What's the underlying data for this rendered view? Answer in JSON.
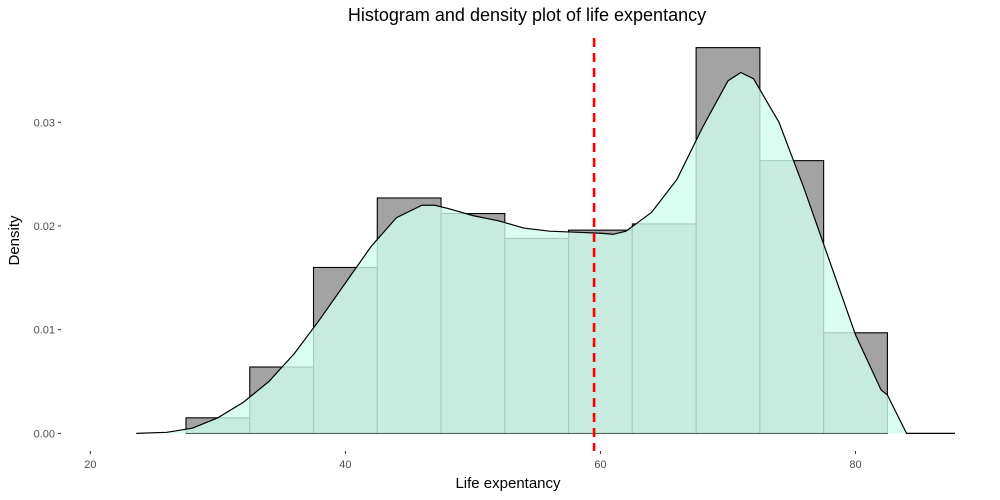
{
  "chart_data": {
    "type": "bar",
    "title": "Histogram and density plot of life expentancy",
    "xlabel": "Life expentancy",
    "ylabel": "Density",
    "xlim": [
      17.7,
      87.8
    ],
    "ylim": [
      -0.0017,
      0.0389
    ],
    "x_ticks": [
      20,
      40,
      60,
      80
    ],
    "x_tick_labels": [
      "20",
      "40",
      "60",
      "80"
    ],
    "y_ticks": [
      0.0,
      0.01,
      0.02,
      0.03
    ],
    "y_tick_labels": [
      "0.00",
      "0.01",
      "0.02",
      "0.03"
    ],
    "grid": false,
    "histogram": {
      "bin_width": 5,
      "bins": [
        {
          "x0": 27.5,
          "x1": 32.5,
          "value": 0.0015
        },
        {
          "x0": 32.5,
          "x1": 37.5,
          "value": 0.0064
        },
        {
          "x0": 37.5,
          "x1": 42.5,
          "value": 0.016
        },
        {
          "x0": 42.5,
          "x1": 47.5,
          "value": 0.0227
        },
        {
          "x0": 47.5,
          "x1": 52.5,
          "value": 0.0212
        },
        {
          "x0": 52.5,
          "x1": 57.5,
          "value": 0.0188
        },
        {
          "x0": 57.5,
          "x1": 62.5,
          "value": 0.0196
        },
        {
          "x0": 62.5,
          "x1": 67.5,
          "value": 0.0202
        },
        {
          "x0": 67.5,
          "x1": 72.5,
          "value": 0.0372
        },
        {
          "x0": 72.5,
          "x1": 77.5,
          "value": 0.0263
        },
        {
          "x0": 77.5,
          "x1": 82.5,
          "value": 0.0097
        }
      ],
      "fill": "#a3a3a3",
      "stroke": "#000000"
    },
    "density": {
      "x": [
        23.6,
        26,
        28,
        30,
        32,
        34,
        36,
        38,
        40,
        42,
        44,
        46,
        47,
        48,
        50,
        52,
        54,
        56,
        58,
        60,
        61,
        62,
        64,
        66,
        68,
        70,
        71,
        72,
        74,
        76,
        78,
        80,
        82,
        82.5,
        84,
        86,
        87.8
      ],
      "y": [
        0.0,
        0.0001,
        0.0005,
        0.0015,
        0.003,
        0.005,
        0.0077,
        0.011,
        0.0145,
        0.018,
        0.0208,
        0.022,
        0.022,
        0.0217,
        0.021,
        0.0205,
        0.0198,
        0.0195,
        0.0194,
        0.0193,
        0.0192,
        0.0195,
        0.0213,
        0.0245,
        0.0295,
        0.034,
        0.0348,
        0.0342,
        0.03,
        0.0235,
        0.0165,
        0.0095,
        0.0042,
        0.0037,
        0.0,
        0.0,
        0.0
      ],
      "fill": "#d1fdee",
      "stroke": "#000000"
    },
    "vline": {
      "x": 59.5,
      "color": "#ff0000",
      "style": "dashed"
    }
  }
}
